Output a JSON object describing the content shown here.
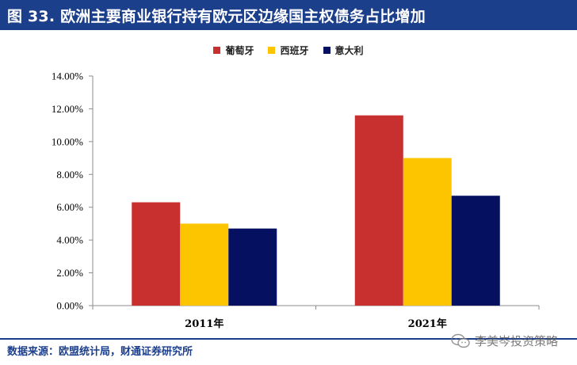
{
  "header": {
    "title": "图 33. 欧洲主要商业银行持有欧元区边缘国主权债务占比增加"
  },
  "legend": {
    "items": [
      {
        "label": "葡萄牙",
        "color": "#c8302f"
      },
      {
        "label": "西班牙",
        "color": "#fcc500"
      },
      {
        "label": "意大利",
        "color": "#061060"
      }
    ]
  },
  "footer": {
    "source": "数据来源：欧盟统计局，财通证券研究所",
    "watermark": "李美岑投资策略",
    "watermark_icon": "wechat-icon"
  },
  "chart_data": {
    "type": "bar",
    "title": "",
    "xlabel": "",
    "ylabel": "",
    "categories": [
      "2011年",
      "2021年"
    ],
    "series": [
      {
        "name": "葡萄牙",
        "color": "#c8302f",
        "values": [
          0.063,
          0.116
        ]
      },
      {
        "name": "西班牙",
        "color": "#fcc500",
        "values": [
          0.05,
          0.09
        ]
      },
      {
        "name": "意大利",
        "color": "#061060",
        "values": [
          0.047,
          0.067
        ]
      }
    ],
    "ylim": [
      0,
      0.14
    ],
    "yticks": [
      0,
      0.02,
      0.04,
      0.06,
      0.08,
      0.1,
      0.12,
      0.14
    ],
    "ytick_labels": [
      "0.00%",
      "2.00%",
      "4.00%",
      "6.00%",
      "8.00%",
      "10.00%",
      "12.00%",
      "14.00%"
    ],
    "grid": false,
    "legend_position": "top-center"
  }
}
